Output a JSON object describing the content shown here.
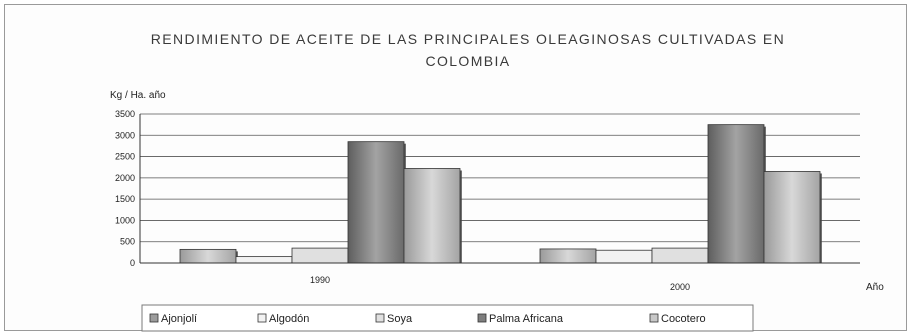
{
  "chart_data": {
    "type": "bar",
    "title_lines": [
      "RENDIMIENTO DE ACEITE DE LAS PRINCIPALES OLEAGINOSAS CULTIVADAS EN",
      "COLOMBIA"
    ],
    "ylabel": "Kg / Ha. año",
    "xlabel": "Año",
    "categories": [
      "1990",
      "2000"
    ],
    "yticks": [
      0,
      500,
      1000,
      1500,
      2000,
      2500,
      3000,
      3500
    ],
    "ytick_labels": [
      "0",
      "500",
      "1000",
      "1500",
      "2000",
      "2500",
      "3000",
      "3500"
    ],
    "ylim": [
      0,
      3500
    ],
    "grid": true,
    "legend_position": "bottom",
    "series": [
      {
        "name": "Ajonjolí",
        "color": "#9c9c9c",
        "values": [
          320,
          330
        ]
      },
      {
        "name": "Algodón",
        "color": "#f2f2f2",
        "values": [
          150,
          300
        ]
      },
      {
        "name": "Soya",
        "color": "#e0e0e0",
        "values": [
          350,
          350
        ]
      },
      {
        "name": "Palma Africana",
        "color": "#7e7e7e",
        "values": [
          2850,
          3250
        ]
      },
      {
        "name": "Cocotero",
        "color": "#c8c8c8",
        "values": [
          2220,
          2150
        ]
      }
    ]
  }
}
